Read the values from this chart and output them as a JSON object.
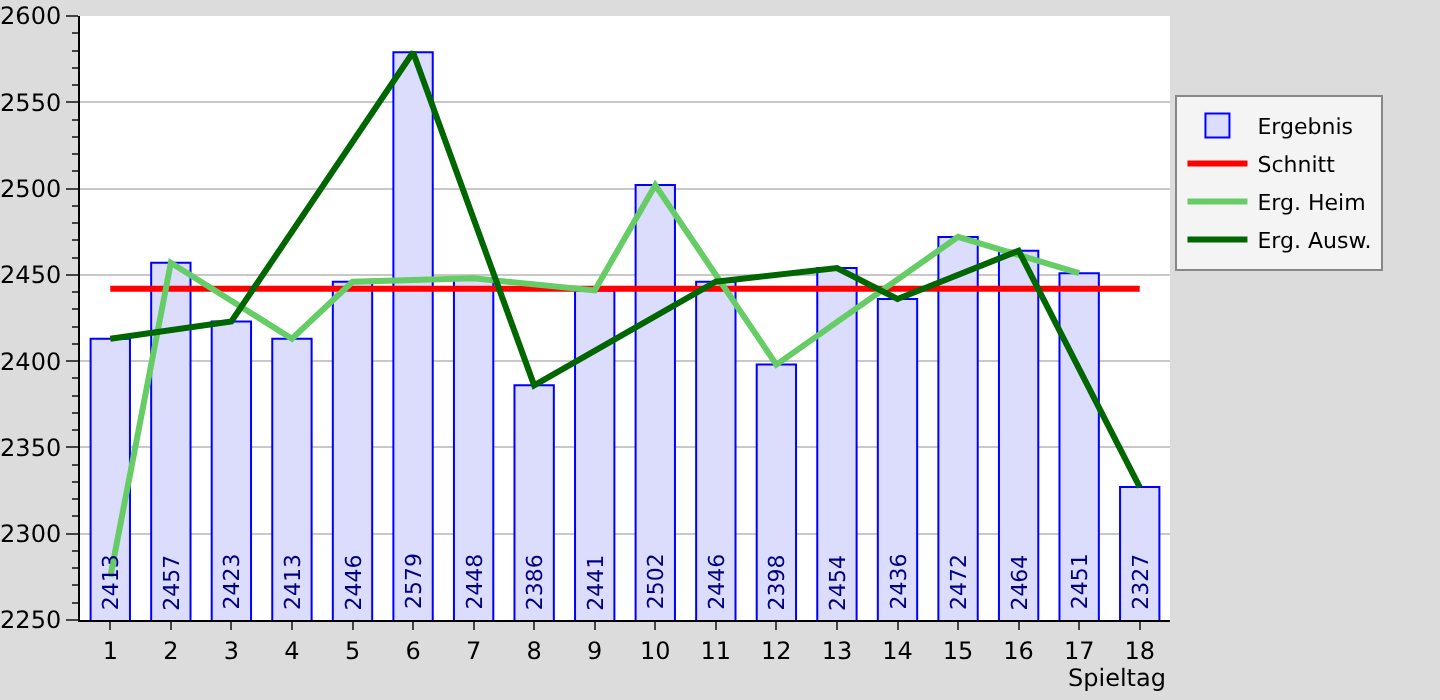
{
  "chart_data": {
    "type": "bar",
    "xlabel": "Spieltag",
    "x": [
      1,
      2,
      3,
      4,
      5,
      6,
      7,
      8,
      9,
      10,
      11,
      12,
      13,
      14,
      15,
      16,
      17,
      18
    ],
    "xlim": [
      0.5,
      18.5
    ],
    "xticks": [
      1,
      2,
      3,
      4,
      5,
      6,
      7,
      8,
      9,
      10,
      11,
      12,
      13,
      14,
      15,
      16,
      17,
      18
    ],
    "ylim": [
      2250,
      2600
    ],
    "yticks": [
      2250,
      2300,
      2350,
      2400,
      2450,
      2500,
      2550,
      2600
    ],
    "grid": "y",
    "legend": "right",
    "series": [
      {
        "name": "Ergebnis",
        "color": "#dcdcfc",
        "values": [
          2413,
          2457,
          2423,
          2413,
          2446,
          2579,
          2448,
          2386,
          2441,
          2502,
          2446,
          2398,
          2454,
          2436,
          2472,
          2464,
          2451,
          2327
        ],
        "value_labels": [
          "2413",
          "2457",
          "2423",
          "2413",
          "2446",
          "2579",
          "2448",
          "2386",
          "2441",
          "2502",
          "2446",
          "2398",
          "2454",
          "2436",
          "2472",
          "2464",
          "2451",
          "2327"
        ]
      },
      {
        "name": "Schnitt",
        "type": "line",
        "color": "#ff0000",
        "x": [
          1,
          18
        ],
        "values": [
          2442,
          2442
        ]
      },
      {
        "name": "Erg. Heim",
        "type": "line",
        "color": "#66cc66",
        "x": [
          1,
          2,
          4,
          5,
          7,
          9,
          10,
          12,
          15,
          17
        ],
        "values": [
          2275,
          2457,
          2413,
          2446,
          2448,
          2441,
          2502,
          2398,
          2472,
          2451
        ]
      },
      {
        "name": "Erg. Ausw.",
        "type": "line",
        "color": "#006600",
        "x": [
          1,
          3,
          6,
          8,
          11,
          13,
          14,
          16,
          18
        ],
        "values": [
          2413,
          2423,
          2579,
          2386,
          2446,
          2454,
          2436,
          2464,
          2327
        ]
      }
    ]
  }
}
